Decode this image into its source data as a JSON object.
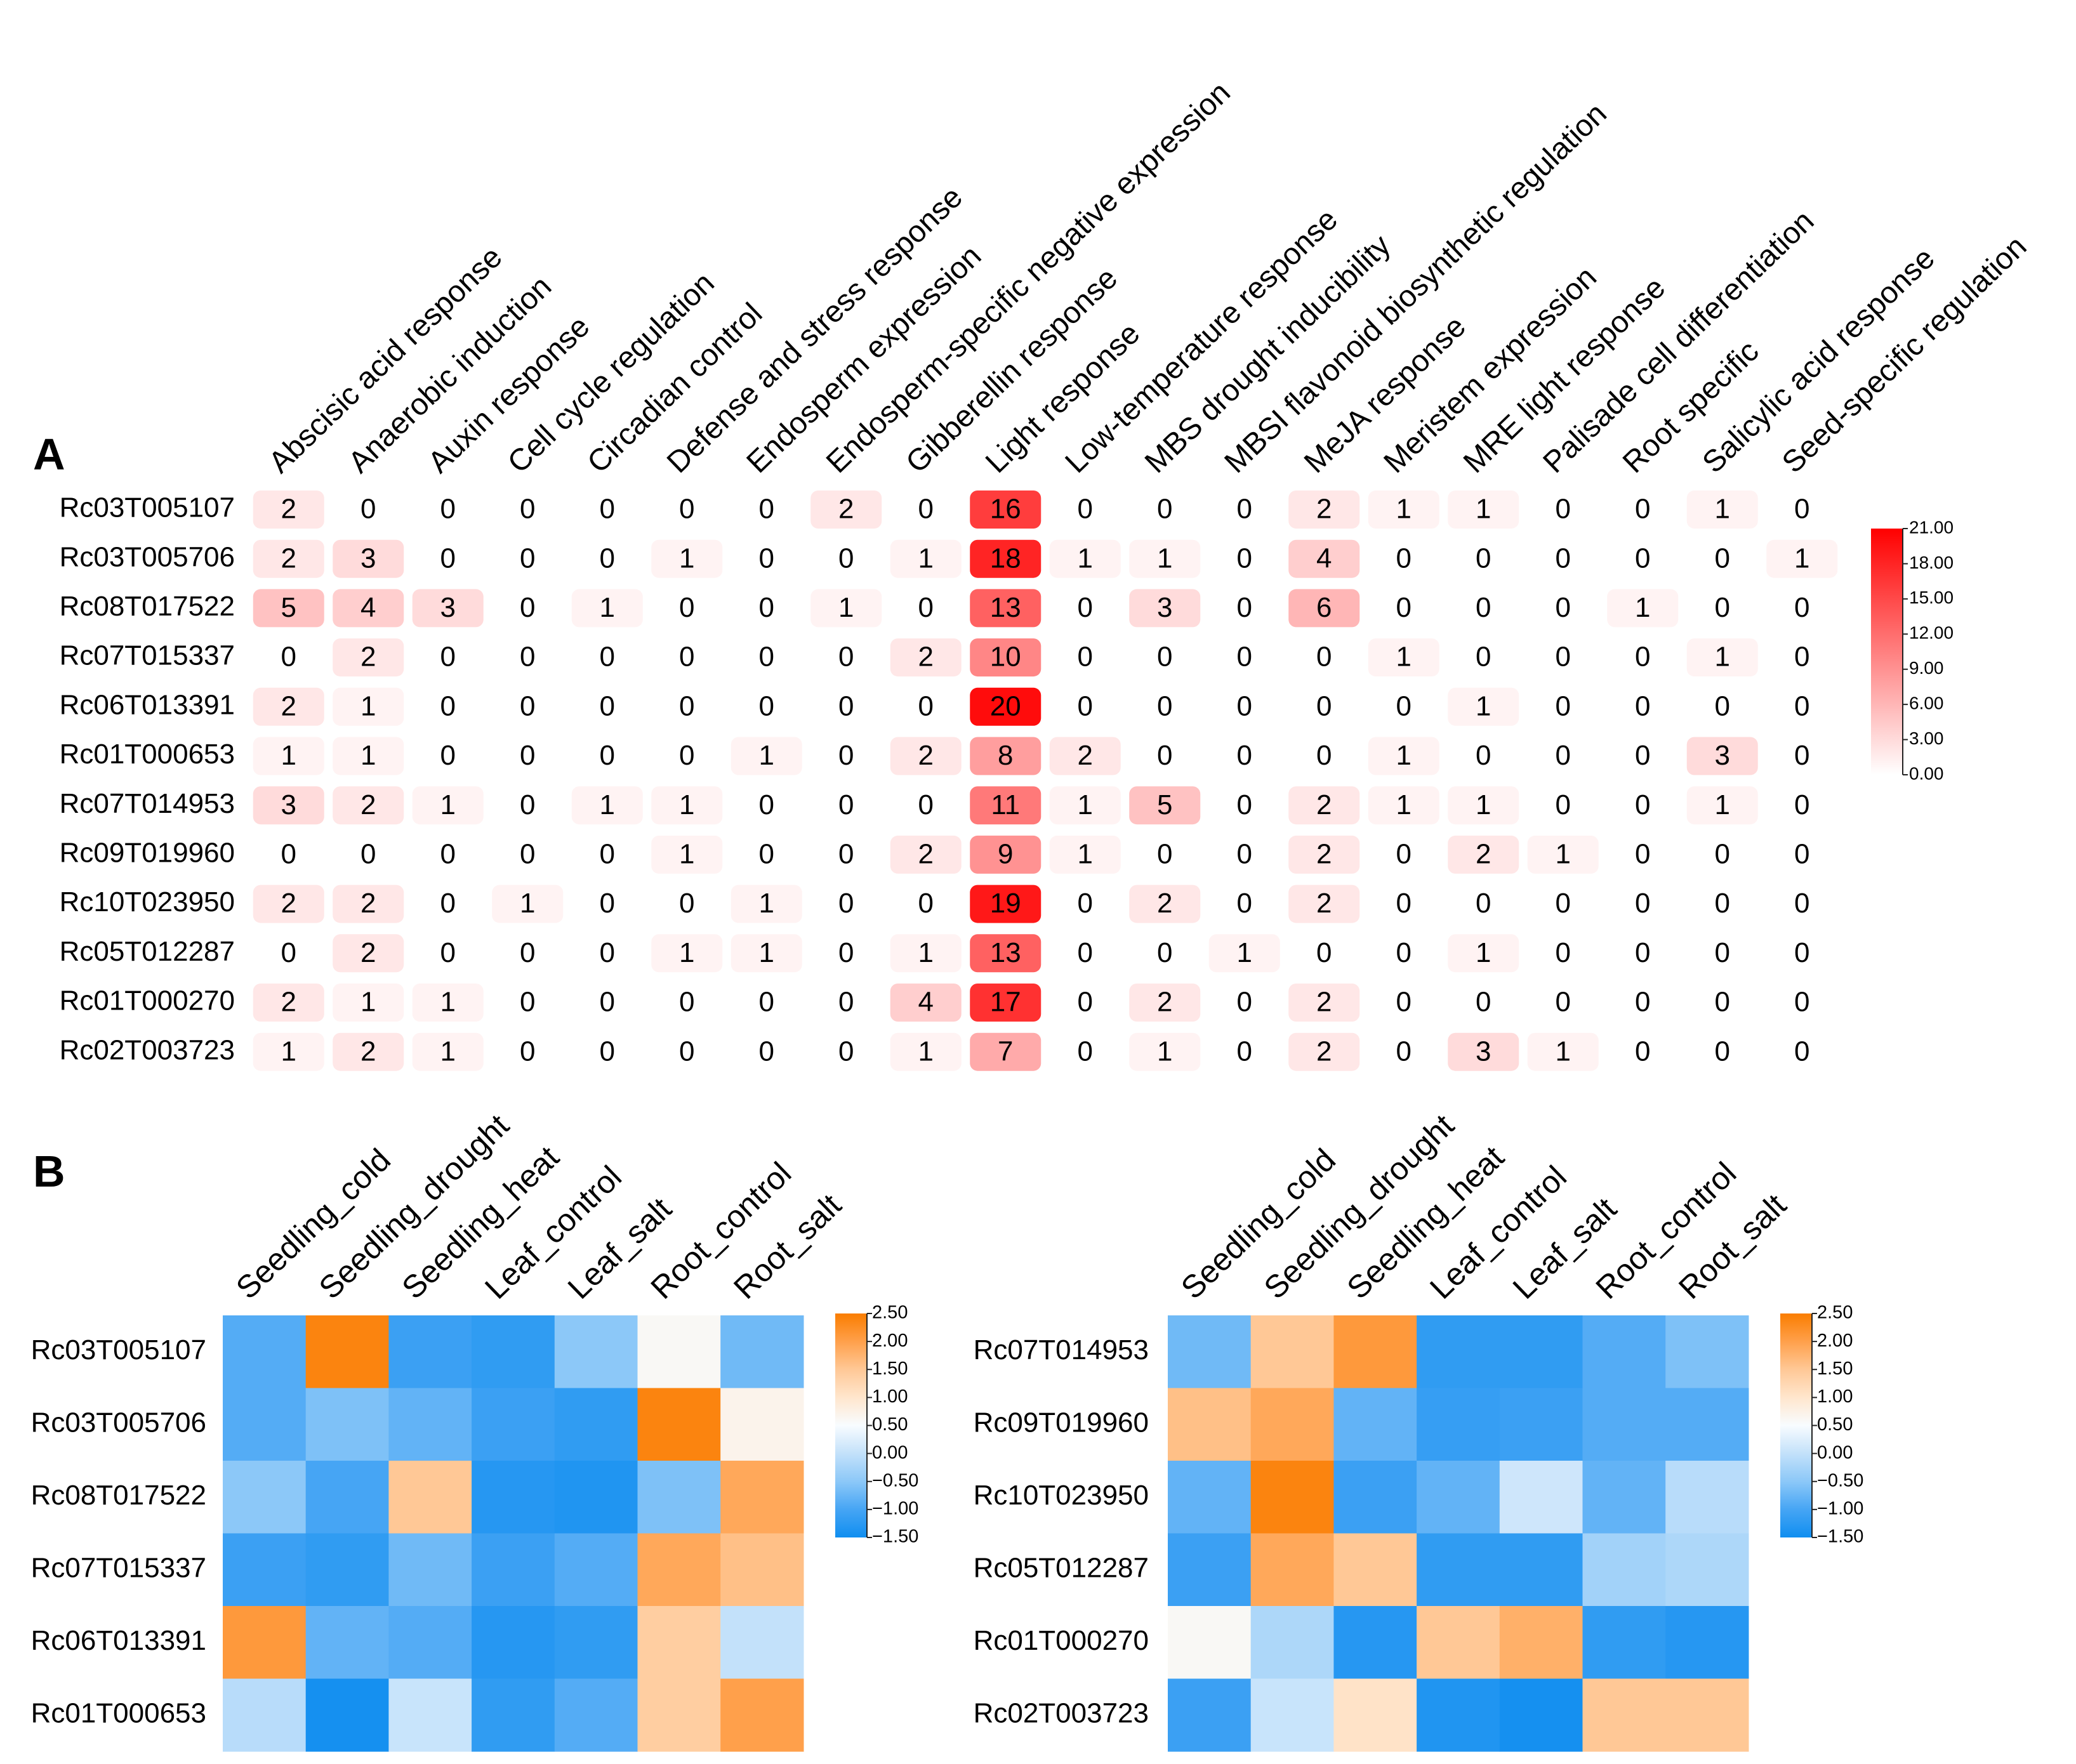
{
  "panel_labels": {
    "a": "A",
    "b": "B"
  },
  "chart_data": [
    {
      "id": "A",
      "type": "heatmap",
      "title": "",
      "rows": [
        "Rc03T005107",
        "Rc03T005706",
        "Rc08T017522",
        "Rc07T015337",
        "Rc06T013391",
        "Rc01T000653",
        "Rc07T014953",
        "Rc09T019960",
        "Rc10T023950",
        "Rc05T012287",
        "Rc01T000270",
        "Rc02T003723"
      ],
      "columns": [
        "Abscisic acid response",
        "Anaerobic induction",
        "Auxin response",
        "Cell cycle regulation",
        "Circadian control",
        "Defense and stress response",
        "Endosperm expression",
        "Endosperm-specific negative expression",
        "Gibberellin response",
        "Light response",
        "Low-temperature response",
        "MBS drought inducibility",
        "MBSI flavonoid biosynthetic regulation",
        "MeJA response",
        "Meristem expression",
        "MRE light response",
        "Palisade cell differentiation",
        "Root specific",
        "Salicylic acid response",
        "Seed-specific regulation"
      ],
      "values": [
        [
          2,
          0,
          0,
          0,
          0,
          0,
          0,
          2,
          0,
          16,
          0,
          0,
          0,
          2,
          1,
          1,
          0,
          0,
          1,
          0
        ],
        [
          2,
          3,
          0,
          0,
          0,
          1,
          0,
          0,
          1,
          18,
          1,
          1,
          0,
          4,
          0,
          0,
          0,
          0,
          0,
          1
        ],
        [
          5,
          4,
          3,
          0,
          1,
          0,
          0,
          1,
          0,
          13,
          0,
          3,
          0,
          6,
          0,
          0,
          0,
          1,
          0,
          0
        ],
        [
          0,
          2,
          0,
          0,
          0,
          0,
          0,
          0,
          2,
          10,
          0,
          0,
          0,
          0,
          1,
          0,
          0,
          0,
          1,
          0
        ],
        [
          2,
          1,
          0,
          0,
          0,
          0,
          0,
          0,
          0,
          20,
          0,
          0,
          0,
          0,
          0,
          1,
          0,
          0,
          0,
          0
        ],
        [
          1,
          1,
          0,
          0,
          0,
          0,
          1,
          0,
          2,
          8,
          2,
          0,
          0,
          0,
          1,
          0,
          0,
          0,
          3,
          0
        ],
        [
          3,
          2,
          1,
          0,
          1,
          1,
          0,
          0,
          0,
          11,
          1,
          5,
          0,
          2,
          1,
          1,
          0,
          0,
          1,
          0
        ],
        [
          0,
          0,
          0,
          0,
          0,
          1,
          0,
          0,
          2,
          9,
          1,
          0,
          0,
          2,
          0,
          2,
          1,
          0,
          0,
          0
        ],
        [
          2,
          2,
          0,
          1,
          0,
          0,
          1,
          0,
          0,
          19,
          0,
          2,
          0,
          2,
          0,
          0,
          0,
          0,
          0,
          0
        ],
        [
          0,
          2,
          0,
          0,
          0,
          1,
          1,
          0,
          1,
          13,
          0,
          0,
          1,
          0,
          0,
          1,
          0,
          0,
          0,
          0
        ],
        [
          2,
          1,
          1,
          0,
          0,
          0,
          0,
          0,
          4,
          17,
          0,
          2,
          0,
          2,
          0,
          0,
          0,
          0,
          0,
          0
        ],
        [
          1,
          2,
          1,
          0,
          0,
          0,
          0,
          0,
          1,
          7,
          0,
          1,
          0,
          2,
          0,
          3,
          1,
          0,
          0,
          0
        ]
      ],
      "colorbar": {
        "min": 0,
        "max": 21,
        "ticks": [
          "21.00",
          "18.00",
          "15.00",
          "12.00",
          "9.00",
          "6.00",
          "3.00",
          "0.00"
        ],
        "low_color": "#ffffff",
        "high_color": "#ff0000"
      }
    },
    {
      "id": "B-left",
      "type": "heatmap",
      "title": "",
      "rows": [
        "Rc03T005107",
        "Rc03T005706",
        "Rc08T017522",
        "Rc07T015337",
        "Rc06T013391",
        "Rc01T000653"
      ],
      "columns": [
        "Seedling_cold",
        "Seedling_drought",
        "Seedling_heat",
        "Leaf_control",
        "Leaf_salt",
        "Root_control",
        "Root_salt"
      ],
      "values": [
        [
          -0.9,
          2.4,
          -1.1,
          -1.2,
          -0.5,
          0.6,
          -0.7
        ],
        [
          -0.9,
          -0.6,
          -0.8,
          -1.1,
          -1.2,
          2.4,
          0.7
        ],
        [
          -0.5,
          -1.0,
          1.5,
          -1.3,
          -1.35,
          -0.6,
          1.9
        ],
        [
          -1.1,
          -1.2,
          -0.7,
          -1.1,
          -0.9,
          1.9,
          1.6
        ],
        [
          2.1,
          -0.8,
          -0.9,
          -1.3,
          -1.2,
          1.4,
          0.0
        ],
        [
          -0.1,
          -1.45,
          0.05,
          -1.2,
          -0.9,
          1.4,
          2.0
        ]
      ],
      "colorbar": {
        "min": -1.5,
        "max": 2.5,
        "ticks": [
          "2.50",
          "2.00",
          "1.50",
          "1.00",
          "0.50",
          "0.00",
          "−0.50",
          "−1.00",
          "−1.50"
        ]
      }
    },
    {
      "id": "B-right",
      "type": "heatmap",
      "title": "",
      "rows": [
        "Rc07T014953",
        "Rc09T019960",
        "Rc10T023950",
        "Rc05T012287",
        "Rc01T000270",
        "Rc02T003723"
      ],
      "columns": [
        "Seedling_cold",
        "Seedling_drought",
        "Seedling_heat",
        "Leaf_control",
        "Leaf_salt",
        "Root_control",
        "Root_salt"
      ],
      "values": [
        [
          -0.7,
          1.5,
          2.1,
          -1.2,
          -1.2,
          -0.9,
          -0.6
        ],
        [
          1.6,
          1.9,
          -0.8,
          -1.15,
          -1.1,
          -0.9,
          -0.9
        ],
        [
          -0.8,
          2.4,
          -1.1,
          -0.8,
          0.1,
          -0.8,
          -0.1
        ],
        [
          -1.1,
          1.9,
          1.5,
          -1.2,
          -1.2,
          -0.3,
          -0.2
        ],
        [
          0.6,
          -0.2,
          -1.3,
          1.5,
          1.8,
          -1.2,
          -1.3
        ],
        [
          -1.1,
          0.05,
          1.05,
          -1.35,
          -1.45,
          1.5,
          1.5
        ]
      ],
      "colorbar": {
        "min": -1.5,
        "max": 2.5,
        "ticks": [
          "2.50",
          "2.00",
          "1.50",
          "1.00",
          "0.50",
          "0.00",
          "−0.50",
          "−1.00",
          "−1.50"
        ]
      }
    }
  ]
}
